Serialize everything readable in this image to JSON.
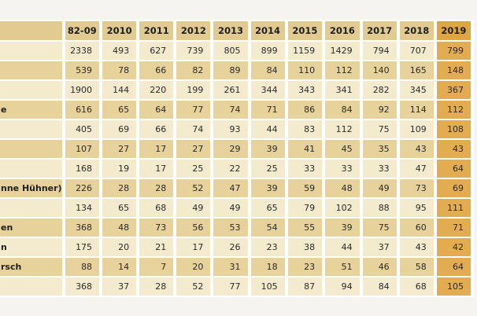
{
  "page": {
    "background": "#f6f4f1"
  },
  "colors": {
    "header_bg": "#e2cb90",
    "row_even_bg": "#e8d29b",
    "row_odd_bg": "#f4ebcf",
    "highlight_header_bg": "#dea540",
    "highlight_cell_bg": "#e4ac50",
    "grid_gap": "#ffffff",
    "text": "#2a2a2a"
  },
  "chart_data": {
    "type": "table",
    "corner_label": "",
    "columns": [
      "82-09",
      "2010",
      "2011",
      "2012",
      "2013",
      "2014",
      "2015",
      "2016",
      "2017",
      "2018",
      "2019"
    ],
    "highlighted_column": "2019",
    "rows": [
      {
        "label": "",
        "values": [
          2338,
          493,
          627,
          739,
          805,
          899,
          1159,
          1429,
          794,
          707,
          799
        ]
      },
      {
        "label": "",
        "values": [
          539,
          78,
          66,
          82,
          89,
          84,
          110,
          112,
          140,
          165,
          148
        ]
      },
      {
        "label": "",
        "values": [
          1900,
          144,
          220,
          199,
          261,
          344,
          343,
          341,
          282,
          345,
          367
        ]
      },
      {
        "label": "e",
        "values": [
          616,
          65,
          64,
          77,
          74,
          71,
          86,
          84,
          92,
          114,
          112
        ]
      },
      {
        "label": "",
        "values": [
          405,
          69,
          66,
          74,
          93,
          44,
          83,
          112,
          75,
          109,
          108
        ]
      },
      {
        "label": "",
        "values": [
          107,
          27,
          17,
          27,
          29,
          39,
          41,
          45,
          35,
          43,
          43
        ]
      },
      {
        "label": "",
        "values": [
          168,
          19,
          17,
          25,
          22,
          25,
          33,
          33,
          33,
          47,
          64
        ]
      },
      {
        "label": "nne Hühner)",
        "values": [
          226,
          28,
          28,
          52,
          47,
          39,
          59,
          48,
          49,
          73,
          69
        ]
      },
      {
        "label": "",
        "values": [
          134,
          65,
          68,
          49,
          49,
          65,
          79,
          102,
          88,
          95,
          111
        ]
      },
      {
        "label": "en",
        "values": [
          368,
          48,
          73,
          56,
          53,
          54,
          55,
          39,
          75,
          60,
          71
        ]
      },
      {
        "label": "n",
        "values": [
          175,
          20,
          21,
          17,
          26,
          23,
          38,
          44,
          37,
          43,
          42
        ]
      },
      {
        "label": "rsch",
        "values": [
          88,
          14,
          7,
          20,
          31,
          18,
          23,
          51,
          46,
          58,
          64
        ]
      },
      {
        "label": "",
        "values": [
          368,
          37,
          28,
          52,
          77,
          105,
          87,
          94,
          84,
          68,
          105
        ]
      }
    ]
  }
}
